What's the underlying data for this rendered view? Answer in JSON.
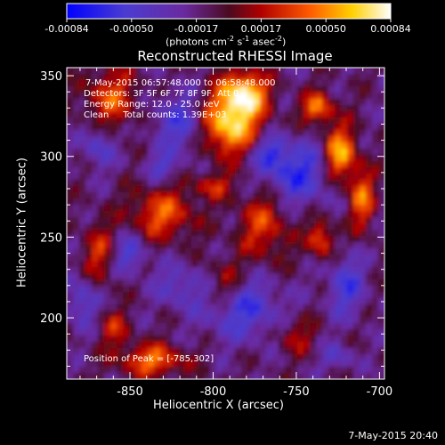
{
  "colorbar": {
    "ticks": [
      "-0.00084",
      "-0.00050",
      "-0.00017",
      "0.00017",
      "0.00050",
      "0.00084"
    ],
    "units_text": "(photons cm",
    "units_exp1": "-2",
    "units_mid": " s",
    "units_exp2": "-1",
    "units_mid2": " asec",
    "units_exp3": "-2",
    "units_close": ")"
  },
  "chart_data": {
    "type": "heatmap",
    "title": "Reconstructed RHESSI Image",
    "xlabel": "Heliocentric X (arcsec)",
    "ylabel": "Heliocentric Y (arcsec)",
    "xlim": [
      -888,
      -697
    ],
    "ylim": [
      162,
      355
    ],
    "xticks": [
      -850,
      -800,
      -750,
      -700
    ],
    "yticks": [
      200,
      250,
      300,
      350
    ],
    "xtick_labels": [
      "-850",
      "-800",
      "-750",
      "-700"
    ],
    "ytick_labels": [
      "200",
      "250",
      "300",
      "350"
    ],
    "color_range": [
      -0.00084,
      0.00084
    ],
    "colormap": "blue-purple-red-yellow-white",
    "peak": [
      -785,
      302
    ]
  },
  "annotations": {
    "line1": "7-May-2015 06:57:48.000 to 06:58:48.000",
    "line2": "Detectors: 3F 5F 6F 7F 8F 9F, Att 0",
    "line3": "Energy Range: 12.0 - 25.0 keV",
    "line4": "Clean     Total counts: 1.39E+03",
    "peak_text": "Position of Peak = [-785,302]"
  },
  "footer": {
    "timestamp": "7-May-2015 20:40"
  }
}
